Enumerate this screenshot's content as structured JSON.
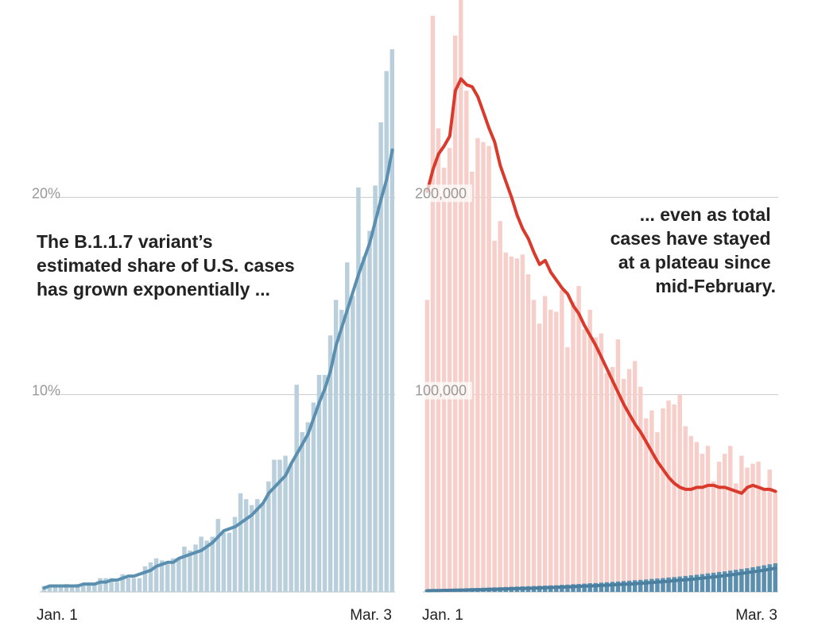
{
  "colors": {
    "variant_bar": "#b9cfdc",
    "variant_line": "#5a8fb0",
    "cases_bar": "#f7cfca",
    "cases_line": "#d93a2b",
    "grid": "#cccccc",
    "axis_text": "#999999",
    "annotation": "#222222"
  },
  "chart_data": [
    {
      "type": "bar",
      "panel": "left",
      "annotation": [
        "The B.1.1.7 variant’s",
        "estimated share of U.S. cases",
        "has grown exponentially ..."
      ],
      "x_start_label": "Jan. 1",
      "x_end_label": "Mar. 3",
      "y_ticks": [
        {
          "value": 10,
          "label": "10%"
        },
        {
          "value": 20,
          "label": "20%"
        }
      ],
      "ylim": [
        0,
        30
      ],
      "grid": true,
      "series": [
        {
          "kind": "bar",
          "unit": "%",
          "values": [
            0.3,
            0.3,
            0.3,
            0.3,
            0.4,
            0.3,
            0.4,
            0.4,
            0.4,
            0.4,
            0.7,
            0.7,
            0.7,
            0.5,
            0.9,
            0.7,
            0.7,
            0.7,
            1.3,
            1.5,
            1.7,
            1.6,
            1.4,
            1.7,
            1.7,
            2.3,
            2.1,
            2.4,
            2.8,
            2.6,
            2.8,
            3.7,
            3.0,
            3.0,
            3.8,
            5.0,
            4.7,
            4.4,
            4.7,
            4.5,
            5.6,
            6.7,
            6.7,
            6.9,
            6.5,
            10.5,
            8.1,
            8.6,
            9.6,
            11.0,
            11.0,
            13.0,
            14.8,
            14.3,
            16.7,
            15.0,
            20.5,
            17.0,
            18.3,
            20.6,
            23.8,
            26.4,
            27.5
          ],
          "ylim": [
            0,
            30
          ]
        },
        {
          "kind": "line",
          "unit": "%",
          "values": [
            0.2,
            0.3,
            0.3,
            0.3,
            0.3,
            0.3,
            0.3,
            0.4,
            0.4,
            0.4,
            0.5,
            0.5,
            0.6,
            0.6,
            0.7,
            0.8,
            0.8,
            0.9,
            1.0,
            1.1,
            1.3,
            1.4,
            1.5,
            1.5,
            1.7,
            1.8,
            1.9,
            2.0,
            2.1,
            2.3,
            2.5,
            2.8,
            3.1,
            3.2,
            3.3,
            3.5,
            3.7,
            3.9,
            4.2,
            4.5,
            5.0,
            5.3,
            5.6,
            5.9,
            6.5,
            7.0,
            7.5,
            8.0,
            8.8,
            9.6,
            10.3,
            11.2,
            12.5,
            13.4,
            14.3,
            15.2,
            16.1,
            16.9,
            17.7,
            18.8,
            19.9,
            20.9,
            22.4
          ],
          "ylim": [
            0,
            30
          ]
        }
      ]
    },
    {
      "type": "bar",
      "panel": "right",
      "annotation": [
        "... even as total",
        "cases have stayed",
        "at a plateau since",
        "mid-February."
      ],
      "x_start_label": "Jan. 1",
      "x_end_label": "Mar. 3",
      "y_ticks": [
        {
          "value": 100000,
          "label": "100,000"
        },
        {
          "value": 200000,
          "label": "200,000"
        }
      ],
      "ylim": [
        0,
        300000
      ],
      "grid": true,
      "series": [
        {
          "kind": "bar",
          "unit": "cases",
          "values": [
            148000,
            292000,
            235000,
            215000,
            225000,
            282000,
            300000,
            254000,
            213000,
            230000,
            228000,
            226000,
            178000,
            188000,
            172000,
            170000,
            169000,
            171000,
            161000,
            148000,
            136000,
            150000,
            143000,
            142000,
            153000,
            124000,
            147000,
            155000,
            133000,
            143000,
            129000,
            131000,
            111000,
            114000,
            128000,
            108000,
            113000,
            117000,
            104000,
            88000,
            92000,
            81000,
            93000,
            97000,
            95000,
            100000,
            84000,
            79000,
            76000,
            70000,
            74000,
            56000,
            66000,
            70000,
            74000,
            55000,
            69000,
            63000,
            65000,
            66000,
            52000,
            62000,
            51000
          ],
          "ylim": [
            0,
            300000
          ]
        },
        {
          "kind": "line",
          "unit": "cases",
          "values": [
            203000,
            214000,
            222000,
            226000,
            231000,
            254000,
            260000,
            257000,
            256000,
            251000,
            243000,
            235000,
            228000,
            216000,
            208000,
            200000,
            191000,
            184000,
            179000,
            172000,
            166000,
            168000,
            162000,
            158000,
            154000,
            151000,
            145000,
            141000,
            135000,
            130000,
            125000,
            119000,
            113000,
            107000,
            101000,
            95000,
            90000,
            85000,
            81000,
            76000,
            71000,
            66000,
            62000,
            58000,
            55000,
            53000,
            52000,
            52000,
            53000,
            53000,
            54000,
            54000,
            53000,
            53000,
            52000,
            51000,
            50000,
            53000,
            54000,
            53000,
            52000,
            52000,
            51000
          ],
          "ylim": [
            0,
            300000
          ]
        },
        {
          "kind": "bar",
          "unit": "variant cases",
          "values": [
            1200,
            1300,
            1300,
            1400,
            1500,
            1600,
            1700,
            1800,
            1900,
            2000,
            2100,
            2200,
            2300,
            2400,
            2500,
            2600,
            2700,
            2800,
            2900,
            3000,
            3100,
            3200,
            3300,
            3400,
            3600,
            3700,
            3900,
            4000,
            4200,
            4400,
            4500,
            4700,
            4900,
            5100,
            5300,
            5500,
            5700,
            5900,
            6100,
            6300,
            6600,
            6800,
            7000,
            7300,
            7500,
            7800,
            8100,
            8400,
            8700,
            9000,
            9400,
            9700,
            10100,
            10400,
            10800,
            11200,
            11600,
            12000,
            12500,
            13000,
            13500,
            14000,
            14500
          ],
          "ylim": [
            0,
            300000
          ]
        },
        {
          "kind": "line",
          "unit": "variant cases",
          "values": [
            600,
            700,
            700,
            800,
            800,
            900,
            900,
            1000,
            1100,
            1100,
            1200,
            1300,
            1300,
            1400,
            1500,
            1600,
            1700,
            1700,
            1800,
            1900,
            2000,
            2100,
            2200,
            2300,
            2400,
            2500,
            2600,
            2800,
            2900,
            3000,
            3100,
            3300,
            3400,
            3600,
            3700,
            3900,
            4000,
            4200,
            4400,
            4600,
            4800,
            5000,
            5200,
            5400,
            5700,
            5900,
            6200,
            6400,
            6700,
            7000,
            7300,
            7600,
            7900,
            8300,
            8600,
            9000,
            9400,
            9800,
            10200,
            10600,
            11000,
            11500,
            12000
          ],
          "ylim": [
            0,
            300000
          ]
        }
      ]
    }
  ]
}
